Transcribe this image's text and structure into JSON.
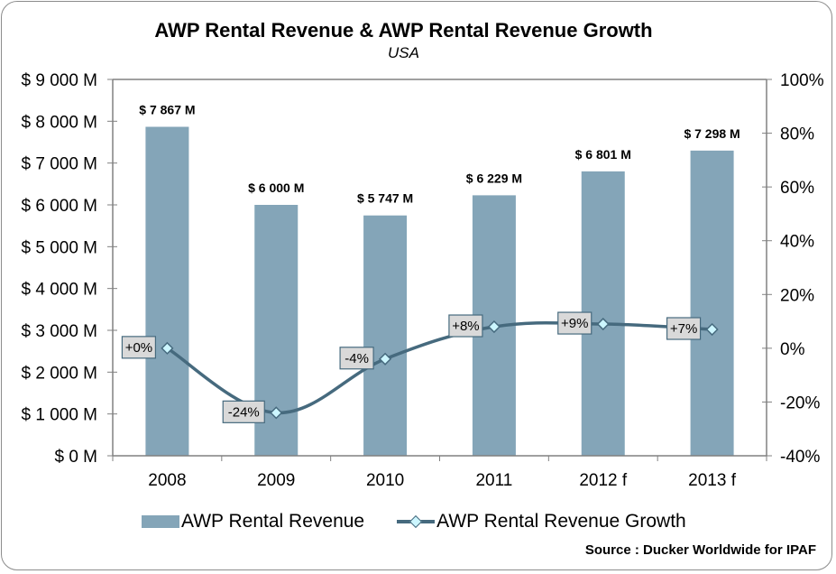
{
  "chart_data": {
    "type": "bar",
    "title": "AWP Rental Revenue & AWP Rental Revenue Growth",
    "subtitle": "USA",
    "categories": [
      "2008",
      "2009",
      "2010",
      "2011",
      "2012 f",
      "2013 f"
    ],
    "series": [
      {
        "name": "AWP Rental Revenue",
        "type": "bar",
        "axis": "left",
        "unit": "$M",
        "values": [
          7867,
          6000,
          5747,
          6229,
          6801,
          7298
        ],
        "labels": [
          "$ 7 867 M",
          "$ 6 000 M",
          "$ 5 747 M",
          "$ 6 229 M",
          "$ 6 801 M",
          "$ 7 298 M"
        ],
        "color": "#84a5b8"
      },
      {
        "name": "AWP Rental Revenue Growth",
        "type": "line",
        "axis": "right",
        "unit": "%",
        "values": [
          0,
          -24,
          -4,
          8,
          9,
          7
        ],
        "labels": [
          "+0%",
          "-24%",
          "-4%",
          "+8%",
          "+9%",
          "+7%"
        ],
        "color": "#466a7e",
        "marker": "diamond",
        "marker_color": "#ccf6ff"
      }
    ],
    "y_left": {
      "ylim": [
        0,
        9000
      ],
      "ticks": [
        0,
        1000,
        2000,
        3000,
        4000,
        5000,
        6000,
        7000,
        8000,
        9000
      ],
      "tick_labels": [
        "$ 0 M",
        "$ 1 000 M",
        "$ 2 000 M",
        "$ 3 000 M",
        "$ 4 000 M",
        "$ 5 000 M",
        "$ 6 000 M",
        "$ 7 000 M",
        "$ 8 000 M",
        "$ 9 000 M"
      ]
    },
    "y_right": {
      "ylim": [
        -40,
        100
      ],
      "ticks": [
        -40,
        -20,
        0,
        20,
        40,
        60,
        80,
        100
      ],
      "tick_labels": [
        "-40%",
        "-20%",
        "0%",
        "20%",
        "40%",
        "60%",
        "80%",
        "100%"
      ]
    },
    "xlabel": "",
    "grid": false,
    "legend": {
      "position": "bottom",
      "entries": [
        "AWP Rental Revenue",
        "AWP Rental Revenue Growth"
      ]
    },
    "source": "Source : Ducker Worldwide for IPAF"
  }
}
